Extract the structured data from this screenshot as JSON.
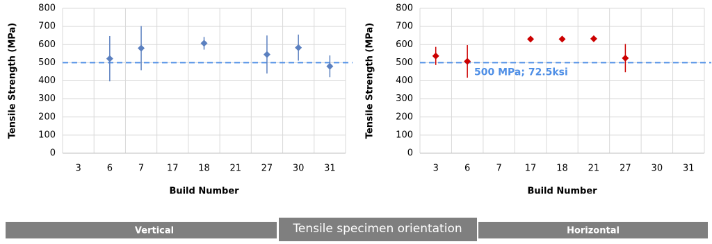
{
  "chart_data": [
    {
      "type": "errorbar",
      "y_label": "Tensile Strength (MPa)",
      "x_label": "Build Number",
      "categories": [
        "3",
        "6",
        "7",
        "17",
        "18",
        "21",
        "27",
        "30",
        "31"
      ],
      "values": [
        null,
        522,
        580,
        null,
        607,
        null,
        545,
        583,
        480
      ],
      "errors": [
        null,
        125,
        122,
        null,
        35,
        null,
        105,
        72,
        60
      ],
      "color": "#5b80c0",
      "ylim": [
        0,
        800
      ],
      "yticks": [
        0,
        100,
        200,
        300,
        400,
        500,
        600,
        700,
        800
      ],
      "grid": true,
      "ref_line": 500,
      "ref_color": "#4f8fe6"
    },
    {
      "type": "errorbar",
      "y_label": "Tensile Strength (MPa)",
      "x_label": "Build Number",
      "categories": [
        "3",
        "6",
        "7",
        "17",
        "18",
        "21",
        "27",
        "30",
        "31"
      ],
      "values": [
        537,
        507,
        null,
        630,
        630,
        632,
        525,
        null,
        null
      ],
      "errors": [
        50,
        90,
        null,
        0,
        0,
        0,
        78,
        null,
        null
      ],
      "color": "#cc0000",
      "ylim": [
        0,
        800
      ],
      "yticks": [
        0,
        100,
        200,
        300,
        400,
        500,
        600,
        700,
        800
      ],
      "grid": true,
      "ref_line": 500,
      "ref_color": "#4f8fe6",
      "annotation": "500 MPa; 72.5ksi"
    }
  ],
  "footer": {
    "left": "Vertical",
    "center": "Tensile specimen orientation",
    "right": "Horizontal"
  }
}
